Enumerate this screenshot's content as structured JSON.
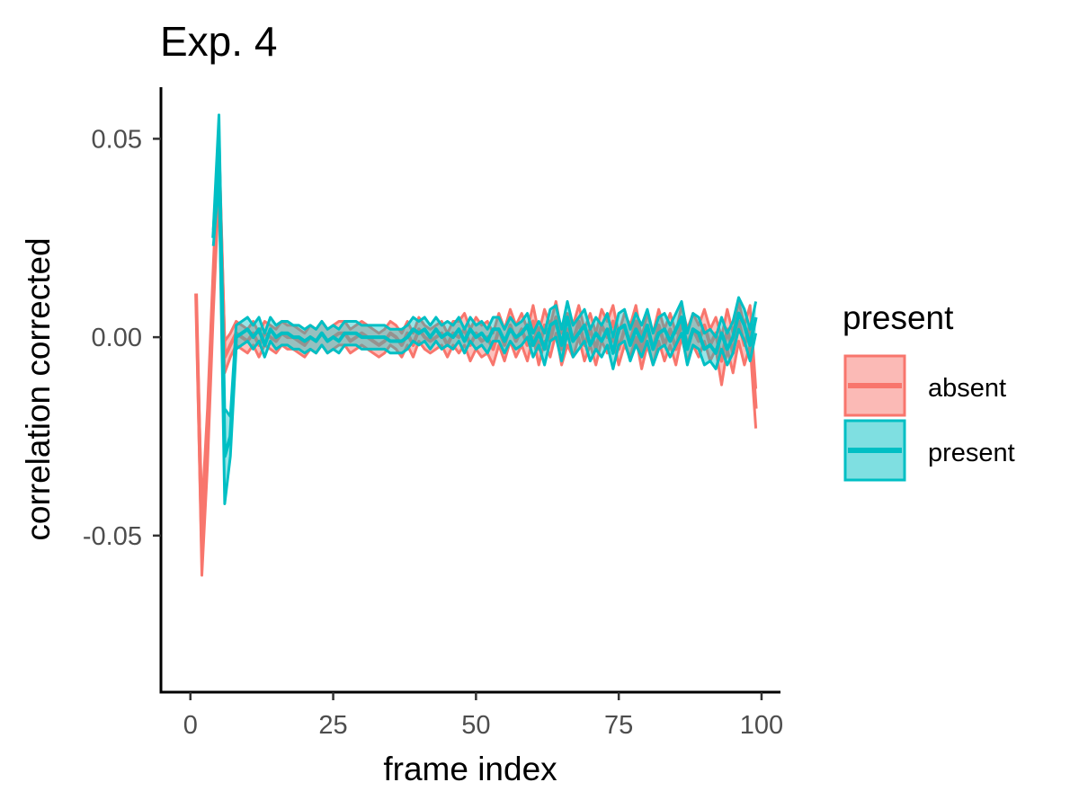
{
  "chart_data": {
    "type": "line",
    "title": "Exp. 4",
    "xlabel": "frame index",
    "ylabel": "correlation corrected",
    "xlim": [
      -5,
      103
    ],
    "ylim": [
      -0.089,
      0.063
    ],
    "xticks": [
      0,
      25,
      50,
      75,
      100
    ],
    "xtick_labels": [
      "0",
      "25",
      "50",
      "75",
      "100"
    ],
    "yticks": [
      0.05,
      0.0,
      -0.05
    ],
    "ytick_labels": [
      "0.05",
      "0.00",
      "-0.05"
    ],
    "grid": false,
    "legend": {
      "title": "present",
      "placement": "right",
      "entries": [
        "absent",
        "present"
      ]
    },
    "colors": {
      "absent": "#F8766D",
      "present": "#00BFC4",
      "overlap": "#8C9B9B"
    },
    "series": [
      {
        "name": "absent",
        "x": [
          1,
          2,
          3,
          4,
          5,
          6,
          7,
          8,
          9,
          10,
          11,
          12,
          13,
          14,
          15,
          16,
          17,
          18,
          19,
          20,
          21,
          22,
          23,
          24,
          25,
          26,
          27,
          28,
          29,
          30,
          31,
          32,
          33,
          34,
          35,
          36,
          37,
          38,
          39,
          40,
          41,
          42,
          43,
          44,
          45,
          46,
          47,
          48,
          49,
          50,
          51,
          52,
          53,
          54,
          55,
          56,
          57,
          58,
          59,
          60,
          61,
          62,
          63,
          64,
          65,
          66,
          67,
          68,
          69,
          70,
          71,
          72,
          73,
          74,
          75,
          76,
          77,
          78,
          79,
          80,
          81,
          82,
          83,
          84,
          85,
          86,
          87,
          88,
          89,
          90,
          91,
          92,
          93,
          94,
          95,
          96,
          97,
          98,
          99
        ],
        "values": [
          0.011,
          -0.052,
          -0.025,
          0.012,
          0.045,
          -0.005,
          -0.002,
          0.001,
          0.0,
          -0.001,
          0.001,
          -0.002,
          0.001,
          0.0,
          -0.001,
          0.001,
          0.0,
          0.0,
          -0.001,
          -0.002,
          0.0,
          -0.001,
          0.001,
          -0.001,
          0.0,
          0.001,
          0.001,
          -0.001,
          0.0,
          0.001,
          0.0,
          -0.001,
          -0.002,
          -0.001,
          0.001,
          0.0,
          -0.002,
          0.001,
          -0.002,
          0.002,
          0.0,
          -0.001,
          0.0,
          0.001,
          -0.002,
          0.001,
          0.0,
          0.002,
          -0.002,
          0.001,
          -0.001,
          0.0,
          -0.003,
          0.002,
          -0.002,
          0.003,
          -0.001,
          0.002,
          -0.002,
          0.004,
          -0.003,
          0.003,
          -0.001,
          0.005,
          -0.003,
          0.002,
          -0.001,
          0.004,
          -0.002,
          0.002,
          -0.003,
          0.003,
          0.0,
          0.004,
          -0.003,
          0.002,
          -0.001,
          0.004,
          -0.004,
          0.002,
          -0.003,
          0.003,
          -0.002,
          0.002,
          -0.003,
          0.004,
          -0.002,
          0.002,
          -0.001,
          0.003,
          -0.002,
          0.001,
          -0.006,
          0.002,
          -0.004,
          0.004,
          -0.002,
          0.003,
          -0.018
        ],
        "lower": [
          0.009,
          -0.06,
          -0.032,
          0.006,
          0.038,
          -0.009,
          -0.005,
          -0.002,
          -0.003,
          -0.004,
          -0.002,
          -0.005,
          -0.002,
          -0.003,
          -0.004,
          -0.002,
          -0.003,
          -0.003,
          -0.004,
          -0.005,
          -0.003,
          -0.004,
          -0.002,
          -0.004,
          -0.003,
          -0.002,
          -0.002,
          -0.004,
          -0.003,
          -0.002,
          -0.003,
          -0.004,
          -0.005,
          -0.004,
          -0.002,
          -0.003,
          -0.005,
          -0.002,
          -0.005,
          -0.001,
          -0.003,
          -0.004,
          -0.003,
          -0.002,
          -0.005,
          -0.002,
          -0.004,
          -0.002,
          -0.006,
          -0.003,
          -0.005,
          -0.004,
          -0.007,
          -0.002,
          -0.006,
          -0.001,
          -0.005,
          -0.002,
          -0.006,
          0.0,
          -0.007,
          -0.001,
          -0.005,
          0.001,
          -0.007,
          -0.002,
          -0.005,
          0.0,
          -0.006,
          -0.002,
          -0.007,
          -0.001,
          -0.004,
          0.0,
          -0.007,
          -0.002,
          -0.005,
          0.0,
          -0.008,
          -0.002,
          -0.007,
          -0.001,
          -0.006,
          -0.002,
          -0.007,
          0.0,
          -0.006,
          -0.002,
          -0.005,
          -0.001,
          -0.006,
          -0.003,
          -0.012,
          -0.003,
          -0.009,
          -0.001,
          -0.007,
          -0.002,
          -0.023
        ],
        "upper": [
          0.011,
          -0.044,
          -0.018,
          0.018,
          0.05,
          -0.001,
          0.001,
          0.004,
          0.003,
          0.002,
          0.004,
          0.001,
          0.004,
          0.003,
          0.002,
          0.004,
          0.003,
          0.003,
          0.002,
          0.001,
          0.003,
          0.002,
          0.004,
          0.002,
          0.003,
          0.004,
          0.004,
          0.002,
          0.003,
          0.004,
          0.003,
          0.002,
          0.001,
          0.002,
          0.004,
          0.003,
          0.001,
          0.004,
          0.001,
          0.005,
          0.003,
          0.002,
          0.003,
          0.004,
          0.001,
          0.004,
          0.004,
          0.006,
          0.002,
          0.005,
          0.003,
          0.004,
          0.001,
          0.006,
          0.002,
          0.007,
          0.003,
          0.006,
          0.002,
          0.008,
          0.001,
          0.007,
          0.003,
          0.009,
          0.001,
          0.006,
          0.003,
          0.008,
          0.002,
          0.006,
          0.001,
          0.007,
          0.004,
          0.008,
          0.001,
          0.006,
          0.003,
          0.008,
          0.0,
          0.006,
          0.001,
          0.007,
          0.002,
          0.006,
          0.001,
          0.008,
          0.002,
          0.006,
          0.003,
          0.007,
          0.002,
          0.005,
          0.0,
          0.007,
          0.001,
          0.009,
          0.003,
          0.008,
          -0.013
        ]
      },
      {
        "name": "present",
        "x": [
          4,
          5,
          6,
          7,
          8,
          9,
          10,
          11,
          12,
          13,
          14,
          15,
          16,
          17,
          18,
          19,
          20,
          21,
          22,
          23,
          24,
          25,
          26,
          27,
          28,
          29,
          30,
          31,
          32,
          33,
          34,
          35,
          36,
          37,
          38,
          39,
          40,
          41,
          42,
          43,
          44,
          45,
          46,
          47,
          48,
          49,
          50,
          51,
          52,
          53,
          54,
          55,
          56,
          57,
          58,
          59,
          60,
          61,
          62,
          63,
          64,
          65,
          66,
          67,
          68,
          69,
          70,
          71,
          72,
          73,
          74,
          75,
          76,
          77,
          78,
          79,
          80,
          81,
          82,
          83,
          84,
          85,
          86,
          87,
          88,
          89,
          90,
          91,
          92,
          93,
          94,
          95,
          96,
          97,
          98,
          99
        ],
        "values": [
          0.025,
          0.048,
          -0.03,
          -0.025,
          0.0,
          0.001,
          0.002,
          0.0,
          0.002,
          -0.002,
          0.002,
          0.0,
          0.001,
          0.001,
          0.0,
          0.0,
          -0.001,
          0.0,
          -0.001,
          0.001,
          -0.001,
          0.0,
          -0.001,
          0.001,
          0.001,
          0.001,
          0.0,
          0.0,
          0.0,
          0.0,
          0.0,
          -0.001,
          -0.001,
          -0.001,
          0.0,
          0.002,
          0.001,
          0.002,
          0.0,
          0.002,
          0.0,
          0.001,
          0.0,
          0.002,
          -0.001,
          0.002,
          0.0,
          0.001,
          -0.001,
          0.002,
          0.002,
          -0.001,
          0.002,
          0.0,
          0.001,
          0.003,
          -0.002,
          0.001,
          -0.003,
          0.003,
          0.004,
          -0.002,
          0.005,
          -0.001,
          0.001,
          0.003,
          -0.002,
          0.001,
          -0.001,
          0.002,
          -0.004,
          0.002,
          0.003,
          -0.002,
          0.002,
          -0.001,
          0.003,
          -0.003,
          0.001,
          0.002,
          -0.001,
          0.002,
          0.005,
          -0.003,
          0.002,
          0.001,
          -0.003,
          -0.002,
          -0.004,
          0.001,
          -0.003,
          0.0,
          0.006,
          0.003,
          -0.002,
          0.005
        ],
        "lower": [
          0.023,
          0.04,
          -0.042,
          -0.03,
          -0.003,
          -0.002,
          -0.001,
          -0.003,
          -0.001,
          -0.005,
          -0.001,
          -0.003,
          -0.002,
          -0.002,
          -0.003,
          -0.003,
          -0.004,
          -0.003,
          -0.004,
          -0.002,
          -0.004,
          -0.003,
          -0.004,
          -0.002,
          -0.002,
          -0.002,
          -0.003,
          -0.003,
          -0.003,
          -0.003,
          -0.003,
          -0.004,
          -0.004,
          -0.004,
          -0.003,
          -0.001,
          -0.002,
          -0.001,
          -0.003,
          -0.001,
          -0.003,
          -0.002,
          -0.003,
          -0.001,
          -0.004,
          -0.001,
          -0.003,
          -0.002,
          -0.004,
          -0.001,
          -0.001,
          -0.004,
          -0.001,
          -0.003,
          -0.002,
          0.0,
          -0.005,
          -0.002,
          -0.007,
          -0.001,
          0.0,
          -0.006,
          0.001,
          -0.005,
          -0.003,
          -0.001,
          -0.006,
          -0.003,
          -0.005,
          -0.002,
          -0.008,
          -0.002,
          -0.001,
          -0.006,
          -0.002,
          -0.005,
          -0.001,
          -0.007,
          -0.003,
          -0.002,
          -0.005,
          -0.002,
          0.001,
          -0.007,
          -0.002,
          -0.003,
          -0.007,
          -0.006,
          -0.008,
          -0.003,
          -0.007,
          -0.004,
          0.002,
          -0.001,
          -0.006,
          0.001
        ],
        "upper": [
          0.027,
          0.056,
          -0.018,
          -0.02,
          0.003,
          0.004,
          0.005,
          0.003,
          0.005,
          0.001,
          0.005,
          0.003,
          0.004,
          0.004,
          0.003,
          0.003,
          0.002,
          0.003,
          0.002,
          0.004,
          0.002,
          0.003,
          0.002,
          0.004,
          0.004,
          0.004,
          0.003,
          0.003,
          0.003,
          0.003,
          0.003,
          0.002,
          0.002,
          0.002,
          0.003,
          0.005,
          0.004,
          0.005,
          0.003,
          0.005,
          0.003,
          0.004,
          0.003,
          0.005,
          0.002,
          0.005,
          0.003,
          0.004,
          0.002,
          0.005,
          0.005,
          0.002,
          0.005,
          0.003,
          0.004,
          0.006,
          0.001,
          0.004,
          0.001,
          0.007,
          0.008,
          0.002,
          0.009,
          0.003,
          0.005,
          0.007,
          0.002,
          0.005,
          0.003,
          0.006,
          0.0,
          0.006,
          0.007,
          0.002,
          0.006,
          0.003,
          0.007,
          0.001,
          0.005,
          0.006,
          0.003,
          0.006,
          0.009,
          0.001,
          0.006,
          0.005,
          0.001,
          0.002,
          0.0,
          0.005,
          0.001,
          0.004,
          0.01,
          0.007,
          0.002,
          0.009
        ]
      }
    ]
  }
}
